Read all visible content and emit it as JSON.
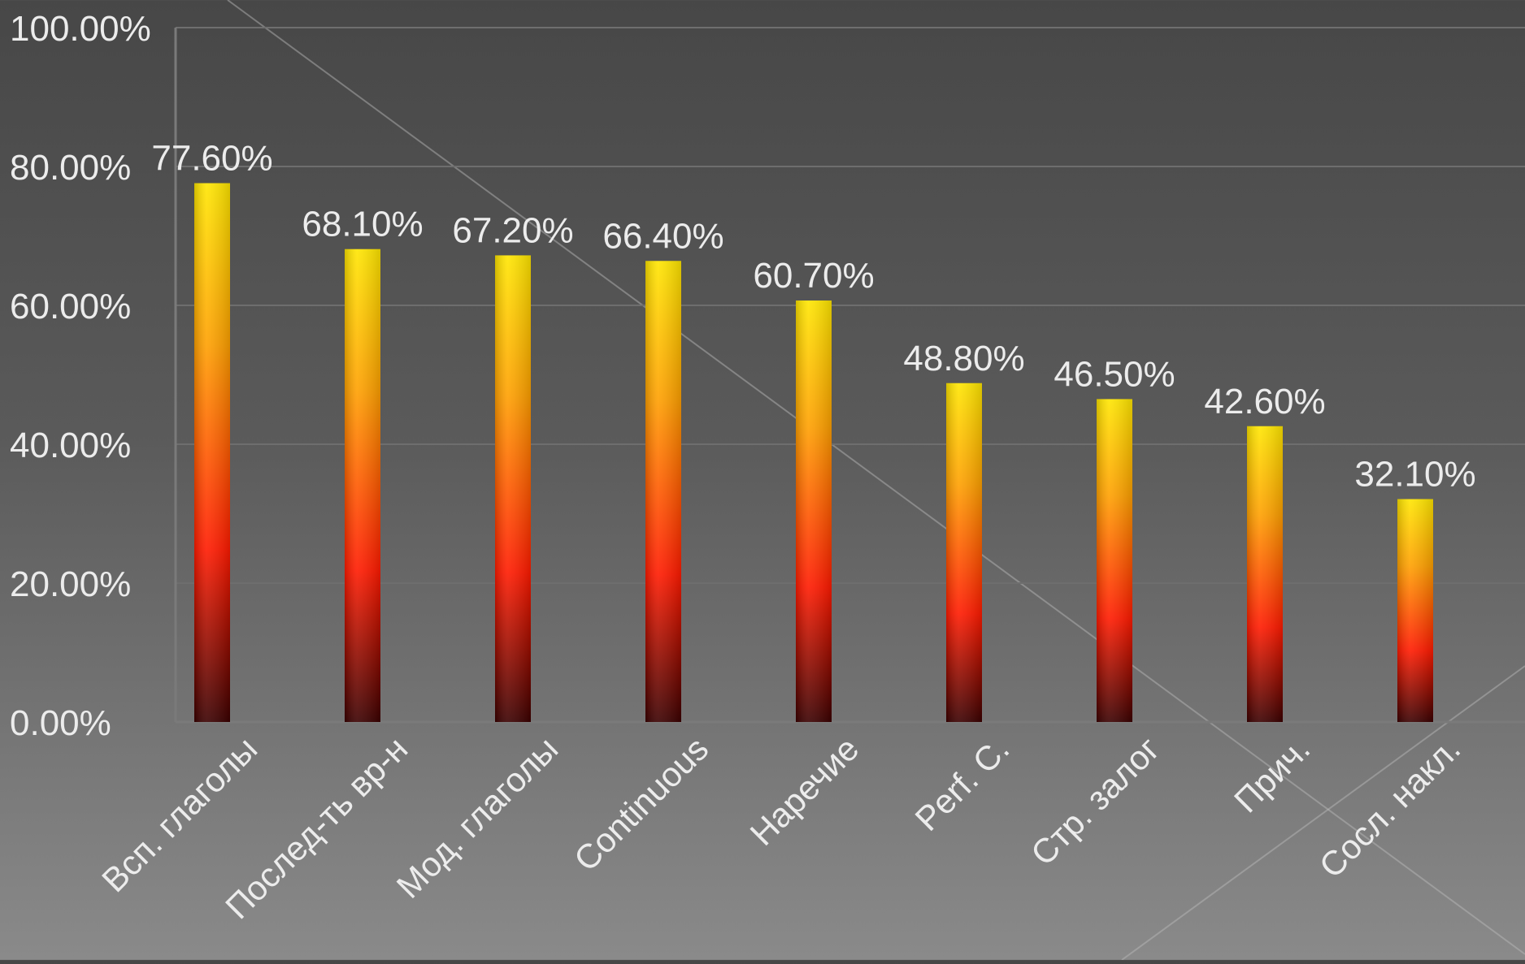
{
  "chart_data": {
    "type": "bar",
    "categories": [
      "Всп. глаголы",
      "Послед-ть вр-н",
      "Мод. глаголы",
      "Continuous",
      "Наречие",
      "Perf. C.",
      "Стр. залог",
      "Прич.",
      "Сосл. накл."
    ],
    "values": [
      77.6,
      68.1,
      67.2,
      66.4,
      60.7,
      48.8,
      46.5,
      42.6,
      32.1
    ],
    "data_labels": [
      "77.60%",
      "68.10%",
      "67.20%",
      "66.40%",
      "60.70%",
      "48.80%",
      "46.50%",
      "42.60%",
      "32.10%"
    ],
    "yticks": [
      "0.00%",
      "20.00%",
      "40.00%",
      "60.00%",
      "80.00%",
      "100.00%"
    ],
    "ylim": [
      0,
      100
    ],
    "grid": true,
    "legend": "none",
    "colors": {
      "bar_top": "#ffe600",
      "bar_upper": "#ffa000",
      "bar_mid": "#ff1a00",
      "bar_bottom": "#3a0000",
      "grid": "#6e6e6e",
      "axis": "#7a7a7a",
      "text": "#ececec"
    }
  }
}
